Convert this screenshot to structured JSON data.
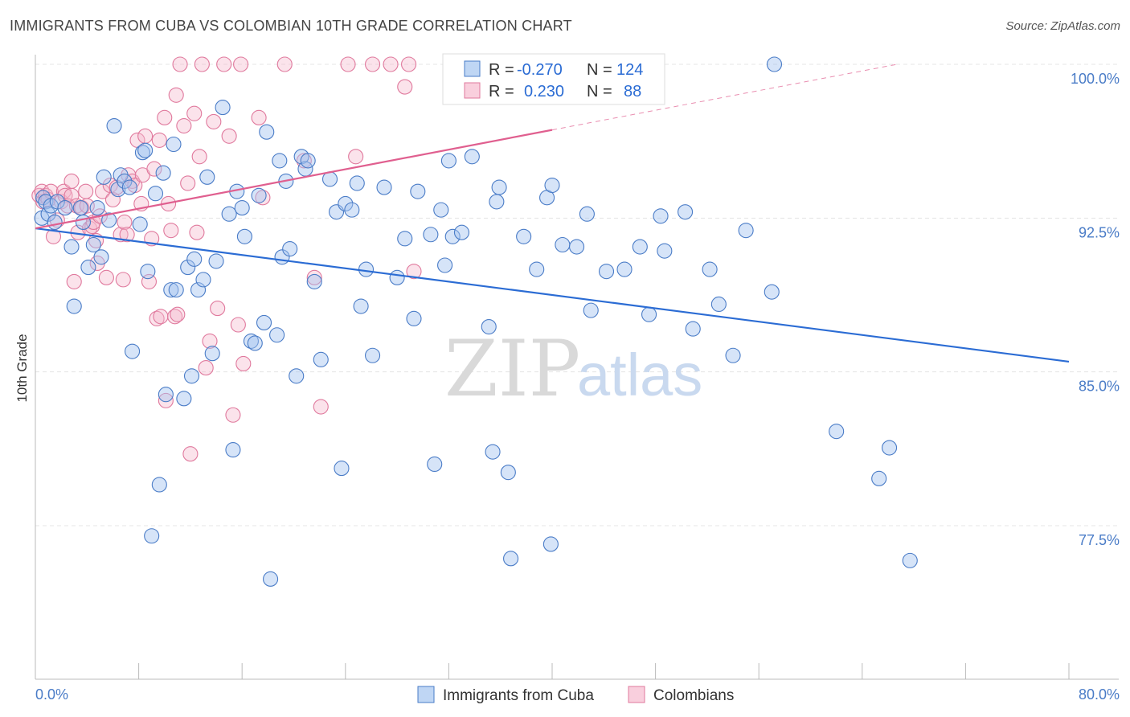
{
  "header": {
    "title": "IMMIGRANTS FROM CUBA VS COLOMBIAN 10TH GRADE CORRELATION CHART",
    "source": "Source: ZipAtlas.com"
  },
  "watermark": {
    "zip": "ZIP",
    "atlas": "atlas"
  },
  "colors": {
    "blue": "#4a7cc7",
    "blue_fill": "rgba(164,196,240,0.45)",
    "blue_line": "#2b6cd4",
    "pink": "#e0799d",
    "pink_fill": "rgba(246,186,206,0.40)",
    "pink_line": "#e05f8f"
  },
  "legend": {
    "rows": [
      {
        "r_label": "R =",
        "r_value": "-0.270",
        "n_label": "N =",
        "n_value": "124"
      },
      {
        "r_label": "R =",
        "r_value": "0.230",
        "n_label": "N =",
        "n_value": "88"
      }
    ]
  },
  "chart_data": {
    "type": "scatter",
    "title": "IMMIGRANTS FROM CUBA VS COLOMBIAN 10TH GRADE CORRELATION CHART",
    "xlabel": "",
    "ylabel": "10th Grade",
    "xlim": [
      0,
      80
    ],
    "ylim": [
      72.0,
      100.5
    ],
    "x_tick_labels": [
      "0.0%",
      "80.0%"
    ],
    "y_ticks": [
      77.5,
      85.0,
      92.5,
      100.0
    ],
    "y_tick_labels": [
      "77.5%",
      "85.0%",
      "92.5%",
      "100.0%"
    ],
    "grid": true,
    "legend_position": "bottom",
    "series": [
      {
        "name": "Immigrants from Cuba",
        "r": -0.27,
        "n": 124,
        "trend": {
          "x": [
            0,
            80
          ],
          "y": [
            92.0,
            85.5
          ]
        },
        "points": [
          [
            0.5,
            92.5
          ],
          [
            0.6,
            93.5
          ],
          [
            0.8,
            93.3
          ],
          [
            1.0,
            92.7
          ],
          [
            1.2,
            93.1
          ],
          [
            1.5,
            92.3
          ],
          [
            1.7,
            93.3
          ],
          [
            2.3,
            93.0
          ],
          [
            2.8,
            91.1
          ],
          [
            3.0,
            88.2
          ],
          [
            3.5,
            93.0
          ],
          [
            3.7,
            92.3
          ],
          [
            4.1,
            90.1
          ],
          [
            4.5,
            91.2
          ],
          [
            4.8,
            93.0
          ],
          [
            5.1,
            90.6
          ],
          [
            5.3,
            94.5
          ],
          [
            5.7,
            92.4
          ],
          [
            6.1,
            97.0
          ],
          [
            6.4,
            93.9
          ],
          [
            6.6,
            94.6
          ],
          [
            6.9,
            94.3
          ],
          [
            7.3,
            94.0
          ],
          [
            7.5,
            86.0
          ],
          [
            8.1,
            92.2
          ],
          [
            8.3,
            95.7
          ],
          [
            8.5,
            95.8
          ],
          [
            8.7,
            89.9
          ],
          [
            9.0,
            77.0
          ],
          [
            9.3,
            93.7
          ],
          [
            9.6,
            79.5
          ],
          [
            9.9,
            94.7
          ],
          [
            10.1,
            83.9
          ],
          [
            10.5,
            89.0
          ],
          [
            10.7,
            96.1
          ],
          [
            10.9,
            89.0
          ],
          [
            11.5,
            83.7
          ],
          [
            11.8,
            90.1
          ],
          [
            12.1,
            84.8
          ],
          [
            12.3,
            90.5
          ],
          [
            12.6,
            89.0
          ],
          [
            13.0,
            89.5
          ],
          [
            13.3,
            94.5
          ],
          [
            13.7,
            85.9
          ],
          [
            14.0,
            90.4
          ],
          [
            14.5,
            97.9
          ],
          [
            15.0,
            92.7
          ],
          [
            15.3,
            81.2
          ],
          [
            15.6,
            93.8
          ],
          [
            16.0,
            93.0
          ],
          [
            16.2,
            91.6
          ],
          [
            16.7,
            86.5
          ],
          [
            17.0,
            86.4
          ],
          [
            17.3,
            93.6
          ],
          [
            17.7,
            87.4
          ],
          [
            17.9,
            96.7
          ],
          [
            18.2,
            74.9
          ],
          [
            18.7,
            86.8
          ],
          [
            18.9,
            95.3
          ],
          [
            19.1,
            90.6
          ],
          [
            19.4,
            94.3
          ],
          [
            19.7,
            91.0
          ],
          [
            20.2,
            84.8
          ],
          [
            20.6,
            95.5
          ],
          [
            20.9,
            94.9
          ],
          [
            21.1,
            95.3
          ],
          [
            21.6,
            89.4
          ],
          [
            22.1,
            85.6
          ],
          [
            22.8,
            94.4
          ],
          [
            23.3,
            92.8
          ],
          [
            23.7,
            80.3
          ],
          [
            24.0,
            93.2
          ],
          [
            24.5,
            92.9
          ],
          [
            24.9,
            94.2
          ],
          [
            25.2,
            88.2
          ],
          [
            25.6,
            90.0
          ],
          [
            26.1,
            85.8
          ],
          [
            27.0,
            94.0
          ],
          [
            28.0,
            89.6
          ],
          [
            28.6,
            91.5
          ],
          [
            29.3,
            87.6
          ],
          [
            29.6,
            93.8
          ],
          [
            30.6,
            91.7
          ],
          [
            30.9,
            80.5
          ],
          [
            31.4,
            92.9
          ],
          [
            31.7,
            90.2
          ],
          [
            32.0,
            95.3
          ],
          [
            32.3,
            91.6
          ],
          [
            33.0,
            91.8
          ],
          [
            33.8,
            95.5
          ],
          [
            35.1,
            87.2
          ],
          [
            35.4,
            81.1
          ],
          [
            35.7,
            93.3
          ],
          [
            35.9,
            94.0
          ],
          [
            36.6,
            80.1
          ],
          [
            36.8,
            75.9
          ],
          [
            37.8,
            91.6
          ],
          [
            38.8,
            90.0
          ],
          [
            39.6,
            93.5
          ],
          [
            39.9,
            76.6
          ],
          [
            40.0,
            94.1
          ],
          [
            40.8,
            91.2
          ],
          [
            41.9,
            91.1
          ],
          [
            42.7,
            92.7
          ],
          [
            43.0,
            88.0
          ],
          [
            44.2,
            89.9
          ],
          [
            45.6,
            90.0
          ],
          [
            46.8,
            91.1
          ],
          [
            47.5,
            87.8
          ],
          [
            48.4,
            92.6
          ],
          [
            48.7,
            90.9
          ],
          [
            50.3,
            92.8
          ],
          [
            50.9,
            87.1
          ],
          [
            52.2,
            90.0
          ],
          [
            52.9,
            88.3
          ],
          [
            54.0,
            85.8
          ],
          [
            55.0,
            91.9
          ],
          [
            57.0,
            88.9
          ],
          [
            57.2,
            100.0
          ],
          [
            62.0,
            82.1
          ],
          [
            65.3,
            79.8
          ],
          [
            66.1,
            81.3
          ],
          [
            67.7,
            75.8
          ]
        ]
      },
      {
        "name": "Colombians",
        "r": 0.23,
        "n": 88,
        "trend": {
          "x": [
            0,
            40
          ],
          "y": [
            92.0,
            96.8
          ]
        },
        "trend_dashed": {
          "x": [
            40,
            66.7
          ],
          "y": [
            96.8,
            100.0
          ]
        },
        "points": [
          [
            0.3,
            93.6
          ],
          [
            0.5,
            93.8
          ],
          [
            0.6,
            93.3
          ],
          [
            0.8,
            93.6
          ],
          [
            1.0,
            93.4
          ],
          [
            1.2,
            93.8
          ],
          [
            1.4,
            91.6
          ],
          [
            1.7,
            92.4
          ],
          [
            2.0,
            93.3
          ],
          [
            2.2,
            93.8
          ],
          [
            2.3,
            93.6
          ],
          [
            2.5,
            93.1
          ],
          [
            2.8,
            93.6
          ],
          [
            2.8,
            94.3
          ],
          [
            3.0,
            89.4
          ],
          [
            3.2,
            93.1
          ],
          [
            3.3,
            91.8
          ],
          [
            3.6,
            93.0
          ],
          [
            3.9,
            93.8
          ],
          [
            4.0,
            93.1
          ],
          [
            4.2,
            92.0
          ],
          [
            4.4,
            92.1
          ],
          [
            4.5,
            92.3
          ],
          [
            4.7,
            91.4
          ],
          [
            4.8,
            90.3
          ],
          [
            5.0,
            92.6
          ],
          [
            5.2,
            93.8
          ],
          [
            5.5,
            89.6
          ],
          [
            5.8,
            94.1
          ],
          [
            6.0,
            93.4
          ],
          [
            6.3,
            94.0
          ],
          [
            6.6,
            91.7
          ],
          [
            6.8,
            89.5
          ],
          [
            6.9,
            92.3
          ],
          [
            7.1,
            91.7
          ],
          [
            7.2,
            94.6
          ],
          [
            7.5,
            94.3
          ],
          [
            7.7,
            94.1
          ],
          [
            7.9,
            96.3
          ],
          [
            8.2,
            93.2
          ],
          [
            8.3,
            94.6
          ],
          [
            8.5,
            96.5
          ],
          [
            8.8,
            89.4
          ],
          [
            9.0,
            91.5
          ],
          [
            9.2,
            94.9
          ],
          [
            9.4,
            87.6
          ],
          [
            9.6,
            96.3
          ],
          [
            9.7,
            87.7
          ],
          [
            10.0,
            97.4
          ],
          [
            10.1,
            83.6
          ],
          [
            10.3,
            93.2
          ],
          [
            10.5,
            91.9
          ],
          [
            10.8,
            87.7
          ],
          [
            10.9,
            98.5
          ],
          [
            11.0,
            87.8
          ],
          [
            11.2,
            100.0
          ],
          [
            11.5,
            97.0
          ],
          [
            11.8,
            94.2
          ],
          [
            12.0,
            81.0
          ],
          [
            12.3,
            97.6
          ],
          [
            12.5,
            91.8
          ],
          [
            12.7,
            95.5
          ],
          [
            12.9,
            100.0
          ],
          [
            13.2,
            85.2
          ],
          [
            13.5,
            86.5
          ],
          [
            13.8,
            97.2
          ],
          [
            14.1,
            88.1
          ],
          [
            14.6,
            100.0
          ],
          [
            15.0,
            96.5
          ],
          [
            15.3,
            82.9
          ],
          [
            15.7,
            87.3
          ],
          [
            15.9,
            100.0
          ],
          [
            16.1,
            85.4
          ],
          [
            17.3,
            97.4
          ],
          [
            17.6,
            93.5
          ],
          [
            19.3,
            100.0
          ],
          [
            20.8,
            95.3
          ],
          [
            21.6,
            89.6
          ],
          [
            22.1,
            83.3
          ],
          [
            24.2,
            100.0
          ],
          [
            24.8,
            95.5
          ],
          [
            26.1,
            100.0
          ],
          [
            27.5,
            100.0
          ],
          [
            28.6,
            98.9
          ],
          [
            28.9,
            100.0
          ],
          [
            29.3,
            89.9
          ],
          [
            33.5,
            100.0
          ],
          [
            33.9,
            100.0
          ]
        ]
      }
    ]
  }
}
